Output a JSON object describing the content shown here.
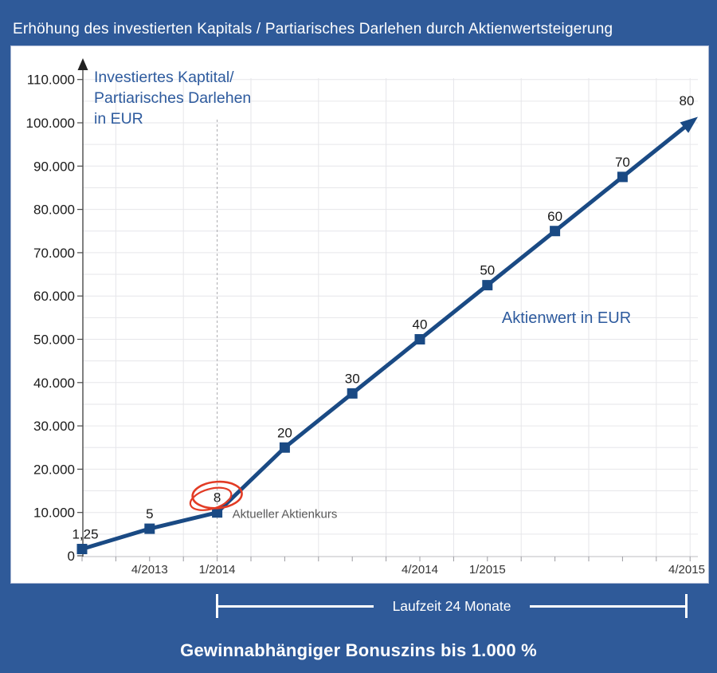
{
  "header": {
    "title": "Erhöhung des investierten Kapitals / Partiarisches Darlehen durch Aktienwertsteigerung"
  },
  "chart_data": {
    "type": "line",
    "title": "Erhöhung des investierten Kapitals / Partiarisches Darlehen durch Aktienwertsteigerung",
    "num_points": 10,
    "x_tick_labels": [
      {
        "index": 1,
        "label": "4/2013"
      },
      {
        "index": 2,
        "label": "1/2014"
      },
      {
        "index": 5,
        "label": "4/2014"
      },
      {
        "index": 6,
        "label": "1/2015"
      },
      {
        "index": 9,
        "label": "4/2015"
      }
    ],
    "series": [
      {
        "name": "Investiertes Kapital / Partiarisches Darlehen in EUR",
        "values_eur": [
          1562.5,
          6250,
          10000,
          25000,
          37500,
          50000,
          62500,
          75000,
          87500,
          100000
        ],
        "point_labels": [
          "1,25",
          "5",
          "8",
          "20",
          "30",
          "40",
          "50",
          "60",
          "70",
          "80"
        ],
        "point_labels_unit": "Aktienwert in EUR"
      }
    ],
    "y_axis": {
      "min": 0,
      "max": 110000,
      "major_step": 10000,
      "minor_step": 5000,
      "tick_labels": [
        "0",
        "10.000",
        "20.000",
        "30.000",
        "40.000",
        "50.000",
        "60.000",
        "70.000",
        "80.000",
        "90.000",
        "100.000",
        "110.000"
      ],
      "title_lines": [
        "Investiertes Kaptital/",
        "Partiarisches Darlehen",
        "in EUR"
      ]
    },
    "annotations": {
      "aktienwert_label": "Aktienwert in EUR",
      "current_price_label": "Aktueller Aktienkurs",
      "highlighted_point_index": 2,
      "dashed_line_point_index": 2,
      "arrow_end_point_index": 9
    },
    "grid": true,
    "legend_position": "none"
  },
  "footer": {
    "laufzeit_label": "Laufzeit 24 Monate",
    "bonus_text": "Gewinnabhängiger Bonuszins bis 1.000 %"
  },
  "colors": {
    "background": "#2F5A99",
    "panel": "#FFFFFF",
    "line": "#1A4A84",
    "blue_text": "#2E5B9E",
    "gray_text": "#595959",
    "red_circle": "#E23B24",
    "grid": "#E6E6EA",
    "axis_dark": "#4A4A4A",
    "axis_light": "#C9C9CE",
    "tick": "#9B9BA1",
    "label_text": "#1A1A1A"
  }
}
